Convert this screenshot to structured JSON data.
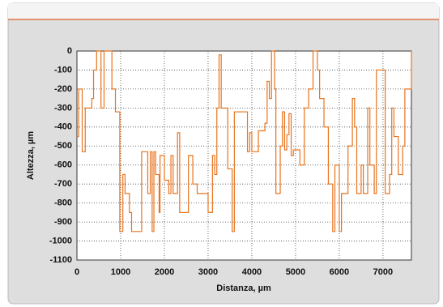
{
  "chart_data": {
    "type": "line",
    "step": true,
    "xlabel": "Distanza, µm",
    "ylabel": "Altezza, µm",
    "xlim": [
      0,
      7650
    ],
    "xticks": [
      0,
      1000,
      2000,
      3000,
      4000,
      5000,
      6000,
      7000
    ],
    "ylim": [
      -1100,
      0
    ],
    "yticks": [
      0,
      -100,
      -200,
      -300,
      -400,
      -500,
      -600,
      -700,
      -800,
      -900,
      -1000,
      -1100
    ],
    "grid": true,
    "series": [
      {
        "color": "#e8741e",
        "x": [
          0,
          40,
          100,
          120,
          170,
          190,
          320,
          340,
          380,
          430,
          450,
          530,
          550,
          600,
          620,
          780,
          800,
          880,
          950,
          980,
          1030,
          1050,
          1100,
          1200,
          1250,
          1450,
          1480,
          1600,
          1620,
          1680,
          1720,
          1760,
          1800,
          1880,
          1900,
          2000,
          2100,
          2150,
          2200,
          2300,
          2350,
          2500,
          2550,
          2650,
          2750,
          2950,
          3000,
          3100,
          3150,
          3200,
          3250,
          3300,
          3450,
          3520,
          3550,
          3600,
          3850,
          3900,
          3950,
          4000,
          4100,
          4150,
          4300,
          4350,
          4400,
          4450,
          4500,
          4520,
          4550,
          4650,
          4700,
          4750,
          4800,
          4850,
          4900,
          4950,
          5100,
          5200,
          5300,
          5400,
          5450,
          5500,
          5550,
          5650,
          5750,
          5850,
          5900,
          6000,
          6050,
          6150,
          6200,
          6300,
          6350,
          6400,
          6500,
          6550,
          6650,
          6700,
          6800,
          6850,
          7000,
          7050,
          7150,
          7200,
          7250,
          7350,
          7450,
          7500,
          7600,
          7650
        ],
        "values": [
          -450,
          -200,
          -200,
          -530,
          -530,
          -300,
          -300,
          -250,
          -100,
          -100,
          0,
          0,
          -300,
          -300,
          0,
          0,
          -200,
          -320,
          -320,
          -950,
          -950,
          -650,
          -750,
          -850,
          -950,
          -950,
          -530,
          -530,
          -750,
          -530,
          -950,
          -530,
          -650,
          -850,
          -550,
          -680,
          -750,
          -550,
          -750,
          -430,
          -850,
          -850,
          -550,
          -700,
          -750,
          -750,
          -850,
          -550,
          -650,
          -300,
          -20,
          -300,
          -620,
          -620,
          -950,
          -320,
          -320,
          -530,
          -430,
          -530,
          -530,
          -420,
          -380,
          -160,
          -250,
          0,
          0,
          -200,
          -750,
          -500,
          -320,
          -520,
          -440,
          -330,
          -550,
          -520,
          -600,
          -300,
          -200,
          0,
          0,
          -100,
          -250,
          -400,
          -700,
          -950,
          -600,
          -950,
          -750,
          -750,
          -500,
          -250,
          -400,
          -750,
          -600,
          -750,
          -300,
          -600,
          -750,
          -100,
          -100,
          -750,
          -650,
          -300,
          -450,
          -650,
          -500,
          -200,
          -200,
          0
        ]
      }
    ]
  }
}
